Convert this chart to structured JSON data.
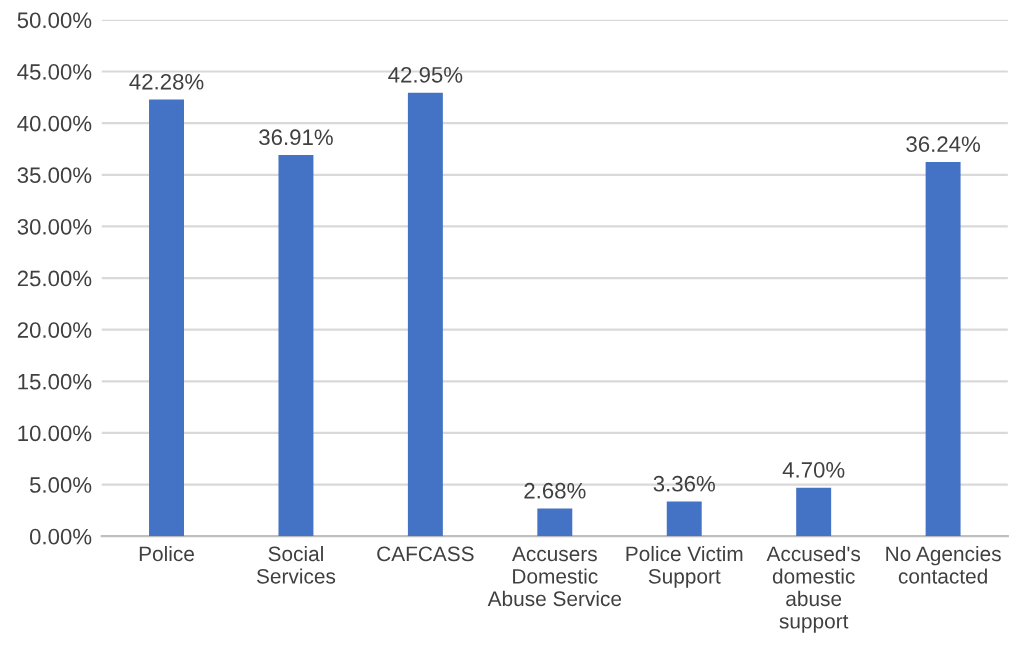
{
  "chart_data": {
    "type": "bar",
    "categories": [
      "Police",
      "Social\nServices",
      "CAFCASS",
      "Accusers\nDomestic\nAbuse Service",
      "Police Victim\nSupport",
      "Accused's\ndomestic\nabuse\nsupport",
      "No Agencies\ncontacted"
    ],
    "values": [
      42.28,
      36.91,
      42.95,
      2.68,
      3.36,
      4.7,
      36.24
    ],
    "value_labels": [
      "42.28%",
      "36.91%",
      "42.95%",
      "2.68%",
      "3.36%",
      "4.70%",
      "36.24%"
    ],
    "color": "#4472c4",
    "ylim": [
      0,
      50
    ],
    "yticks": [
      {
        "value": 0,
        "label": "0.00%"
      },
      {
        "value": 5,
        "label": "5.00%"
      },
      {
        "value": 10,
        "label": "10.00%"
      },
      {
        "value": 15,
        "label": "15.00%"
      },
      {
        "value": 20,
        "label": "20.00%"
      },
      {
        "value": 25,
        "label": "25.00%"
      },
      {
        "value": 30,
        "label": "30.00%"
      },
      {
        "value": 35,
        "label": "35.00%"
      },
      {
        "value": 40,
        "label": "40.00%"
      },
      {
        "value": 45,
        "label": "45.00%"
      },
      {
        "value": 50,
        "label": "50.00%"
      }
    ],
    "grid": "y"
  }
}
